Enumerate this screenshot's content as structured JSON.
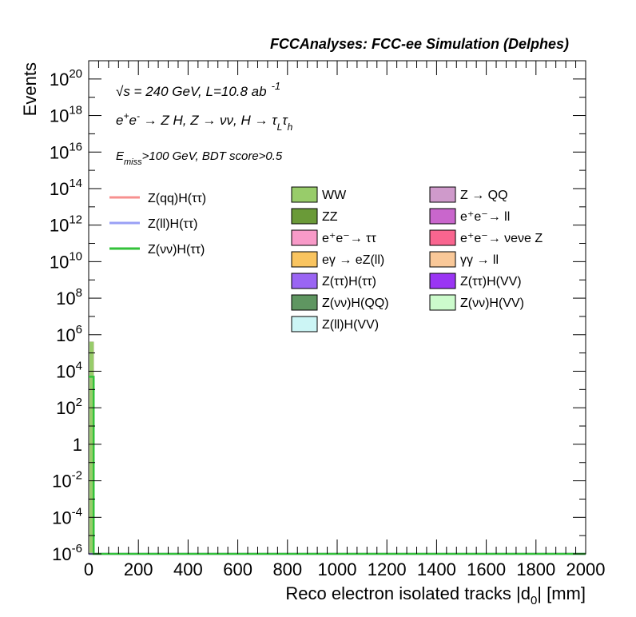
{
  "header": "FCCAnalyses: FCC-ee Simulation (Delphes)",
  "annotations": {
    "line1_energy": "√s = 240 GeV, L=10.8 ab",
    "line1_exp": "-1",
    "line2_process": "e⁺e⁻ → Z H, Z → νν, H → τLτh",
    "line3_cut": "Emiss>100 GeV, BDT score>0.5"
  },
  "colors": {
    "signal_qq": "#f7908f",
    "signal_ll": "#9aa0f5",
    "signal_vv": "#33c23a",
    "WW": "#98cc6a",
    "ZZ": "#6a9a38",
    "ee_tautau": "#f89ac8",
    "egamma_eZll": "#f9c45f",
    "Ztautau_Htautau": "#9a65f3",
    "Zvv_HQQ": "#5f9661",
    "Zll_HVV": "#ccf5f5",
    "Z_QQ": "#cf9acb",
    "ee_ll": "#c966cc",
    "ee_vvZ": "#f9658f",
    "gammagamma_ll": "#f9c898",
    "Ztautau_HVV": "#9a35f3",
    "Zvv_HVV": "#ccfbcc"
  },
  "chart_data": {
    "type": "bar",
    "stacked": true,
    "log_y": true,
    "xlabel": "Reco electron isolated tracks |d0| [mm]",
    "ylabel": "Events",
    "xlim": [
      0,
      2000
    ],
    "ylim": [
      1e-06,
      1e+21
    ],
    "x_ticks": [
      "0",
      "200",
      "400",
      "600",
      "800",
      "1000",
      "1200",
      "1400",
      "1600",
      "1800",
      "2000"
    ],
    "y_ticks": [
      {
        "base": "10",
        "exp": "-6",
        "value": 1e-06
      },
      {
        "base": "10",
        "exp": "-4",
        "value": 0.0001
      },
      {
        "base": "10",
        "exp": "-2",
        "value": 0.01
      },
      {
        "base": "1",
        "exp": "",
        "value": 1
      },
      {
        "base": "10",
        "exp": "2",
        "value": 100.0
      },
      {
        "base": "10",
        "exp": "4",
        "value": 10000.0
      },
      {
        "base": "10",
        "exp": "6",
        "value": 1000000.0
      },
      {
        "base": "10",
        "exp": "8",
        "value": 100000000.0
      },
      {
        "base": "10",
        "exp": "10",
        "value": 10000000000.0
      },
      {
        "base": "10",
        "exp": "12",
        "value": 1000000000000.0
      },
      {
        "base": "10",
        "exp": "14",
        "value": 100000000000000.0
      },
      {
        "base": "10",
        "exp": "16",
        "value": 1e+16
      },
      {
        "base": "10",
        "exp": "18",
        "value": 1e+18
      },
      {
        "base": "10",
        "exp": "20",
        "value": 1e+20
      }
    ],
    "bin": [
      0,
      20
    ],
    "stack": [
      {
        "name": "WW",
        "value": 400000,
        "color": "#98cc6a"
      },
      {
        "name": "ZZ",
        "value": 10000,
        "color": "#6a9a38"
      },
      {
        "name": "e⁺e⁻→ ττ",
        "value": 2000,
        "color": "#f89ac8"
      },
      {
        "name": "ee→ll",
        "value": 2000,
        "color": "#c966cc"
      },
      {
        "name": "eeννZ",
        "value": 100,
        "color": "#f9658f"
      },
      {
        "name": "eγ → eZ(ll)",
        "value": 30,
        "color": "#f9c45f"
      },
      {
        "name": "Z(ττ)H(ττ)",
        "value": 3,
        "color": "#9a65f3"
      },
      {
        "name": "Z(νν)H(QQ)",
        "value": 0.005,
        "color": "#5f9661"
      },
      {
        "name": "Z(ll)H(VV)",
        "value": 0.3,
        "color": "#ccf5f5"
      }
    ],
    "signal_lines": [
      {
        "name": "Z(qq)H(ττ)",
        "color": "#f7908f",
        "value": 1e-06
      },
      {
        "name": "Z(ll)H(ττ)",
        "color": "#9aa0f5",
        "value": 1e-06
      },
      {
        "name": "Z(νν)H(ττ)",
        "color": "#33c23a",
        "value": 5000
      }
    ],
    "legend_signals": [
      "Z(qq)H(ττ)",
      "Z(ll)H(ττ)",
      "Z(νν)H(ττ)"
    ],
    "legend_bkg_col1": [
      {
        "label": "WW",
        "color": "#98cc6a"
      },
      {
        "label": "ZZ",
        "color": "#6a9a38"
      },
      {
        "label": "e⁺e⁻→ ττ",
        "color": "#f89ac8"
      },
      {
        "label": "eγ → eZ(ll)",
        "color": "#f9c45f"
      },
      {
        "label": "Z(ττ)H(ττ)",
        "color": "#9a65f3"
      },
      {
        "label": "Z(νν)H(QQ)",
        "color": "#5f9661"
      },
      {
        "label": "Z(ll)H(VV)",
        "color": "#ccf5f5"
      }
    ],
    "legend_bkg_col2": [
      {
        "label": "Z → QQ",
        "color": "#cf9acb"
      },
      {
        "label": "e⁺e⁻→ ll",
        "color": "#c966cc"
      },
      {
        "label": "e⁺e⁻→ νeνe Z",
        "color": "#f9658f"
      },
      {
        "label": "γγ → ll",
        "color": "#f9c898"
      },
      {
        "label": "Z(ττ)H(VV)",
        "color": "#9a35f3"
      },
      {
        "label": "Z(νν)H(VV)",
        "color": "#ccfbcc"
      }
    ]
  }
}
